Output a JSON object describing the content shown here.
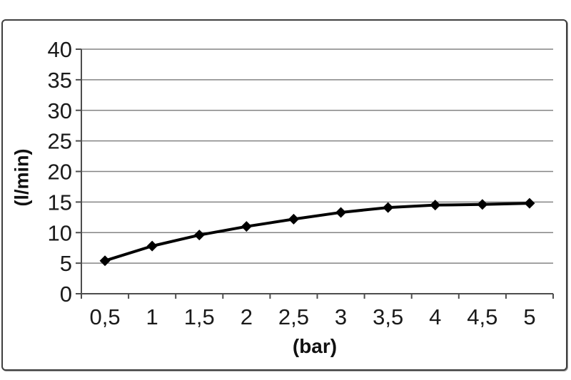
{
  "page": {
    "background": "#ffffff",
    "frame_border_color": "#3f3f3f"
  },
  "chart_data": {
    "type": "line",
    "title": "",
    "xlabel": "(bar)",
    "ylabel": "(l/min)",
    "categories": [
      "0,5",
      "1",
      "1,5",
      "2",
      "2,5",
      "3",
      "3,5",
      "4",
      "4,5",
      "5"
    ],
    "x": [
      0.5,
      1,
      1.5,
      2,
      2.5,
      3,
      3.5,
      4,
      4.5,
      5
    ],
    "values": [
      5.4,
      7.8,
      9.6,
      11.0,
      12.2,
      13.3,
      14.1,
      14.5,
      14.6,
      14.8
    ],
    "ylim": [
      0,
      40
    ],
    "yticks": [
      0,
      5,
      10,
      15,
      20,
      25,
      30,
      35,
      40
    ],
    "ytick_labels": [
      "0",
      "5",
      "10",
      "15",
      "20",
      "25",
      "30",
      "35",
      "40"
    ],
    "grid": "horizontal",
    "legend": "none",
    "marker": "diamond",
    "series_color": "#000000",
    "grid_color": "#848484",
    "axis_color": "#4d4d4d",
    "tick_text_color": "#1a1a1a"
  }
}
